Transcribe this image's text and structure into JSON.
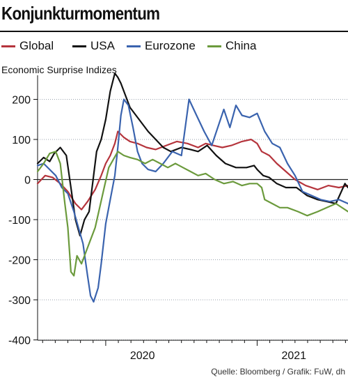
{
  "title": "Konjunkturmomentum",
  "subtitle": "Economic Surprise Indizes",
  "source": "Quelle: Bloomberg / Grafik: FuW, dh",
  "colors": {
    "global": "#b5343c",
    "usa": "#111111",
    "eurozone": "#3a63ae",
    "china": "#6b9a3c",
    "zero_line": "#222222",
    "grid": "#9aa3ad"
  },
  "legend": [
    {
      "key": "global",
      "label": "Global"
    },
    {
      "key": "usa",
      "label": "USA"
    },
    {
      "key": "eurozone",
      "label": "Eurozone"
    },
    {
      "key": "china",
      "label": "China"
    }
  ],
  "chart_data": {
    "type": "line",
    "title": "Konjunkturmomentum",
    "subtitle": "Economic Surprise Indizes",
    "ylim": [
      -400,
      300
    ],
    "yticks": [
      200,
      100,
      0,
      -100,
      -200,
      -300,
      -400
    ],
    "xlim": [
      2019.55,
      2021.6
    ],
    "xticks": [
      {
        "value": 2020.0,
        "label": "2020"
      },
      {
        "value": 2021.0,
        "label": "2021"
      }
    ],
    "grid": "horizontal",
    "legend_position": "top",
    "series": [
      {
        "name": "Global",
        "key": "global",
        "points": [
          [
            2019.55,
            -10
          ],
          [
            2019.6,
            10
          ],
          [
            2019.65,
            5
          ],
          [
            2019.7,
            -10
          ],
          [
            2019.75,
            -30
          ],
          [
            2019.8,
            -60
          ],
          [
            2019.84,
            -75
          ],
          [
            2019.88,
            -55
          ],
          [
            2019.93,
            -25
          ],
          [
            2019.97,
            10
          ],
          [
            2020.0,
            40
          ],
          [
            2020.03,
            60
          ],
          [
            2020.06,
            90
          ],
          [
            2020.08,
            120
          ],
          [
            2020.12,
            105
          ],
          [
            2020.16,
            95
          ],
          [
            2020.21,
            90
          ],
          [
            2020.27,
            80
          ],
          [
            2020.33,
            75
          ],
          [
            2020.4,
            85
          ],
          [
            2020.47,
            95
          ],
          [
            2020.54,
            90
          ],
          [
            2020.61,
            80
          ],
          [
            2020.66,
            90
          ],
          [
            2020.71,
            85
          ],
          [
            2020.77,
            80
          ],
          [
            2020.83,
            85
          ],
          [
            2020.9,
            95
          ],
          [
            2020.96,
            100
          ],
          [
            2021.0,
            90
          ],
          [
            2021.03,
            70
          ],
          [
            2021.08,
            60
          ],
          [
            2021.13,
            40
          ],
          [
            2021.19,
            20
          ],
          [
            2021.25,
            0
          ],
          [
            2021.32,
            -15
          ],
          [
            2021.4,
            -25
          ],
          [
            2021.47,
            -15
          ],
          [
            2021.54,
            -20
          ],
          [
            2021.6,
            -15
          ]
        ]
      },
      {
        "name": "USA",
        "key": "usa",
        "points": [
          [
            2019.55,
            40
          ],
          [
            2019.59,
            55
          ],
          [
            2019.63,
            45
          ],
          [
            2019.66,
            65
          ],
          [
            2019.7,
            80
          ],
          [
            2019.74,
            60
          ],
          [
            2019.77,
            -20
          ],
          [
            2019.8,
            -100
          ],
          [
            2019.83,
            -140
          ],
          [
            2019.86,
            -100
          ],
          [
            2019.89,
            -80
          ],
          [
            2019.92,
            10
          ],
          [
            2019.94,
            70
          ],
          [
            2019.97,
            100
          ],
          [
            2020.0,
            150
          ],
          [
            2020.03,
            220
          ],
          [
            2020.06,
            265
          ],
          [
            2020.08,
            255
          ],
          [
            2020.1,
            240
          ],
          [
            2020.13,
            210
          ],
          [
            2020.16,
            180
          ],
          [
            2020.2,
            160
          ],
          [
            2020.24,
            140
          ],
          [
            2020.28,
            120
          ],
          [
            2020.33,
            100
          ],
          [
            2020.38,
            80
          ],
          [
            2020.43,
            70
          ],
          [
            2020.5,
            80
          ],
          [
            2020.56,
            75
          ],
          [
            2020.61,
            70
          ],
          [
            2020.67,
            85
          ],
          [
            2020.73,
            60
          ],
          [
            2020.79,
            40
          ],
          [
            2020.86,
            30
          ],
          [
            2020.93,
            30
          ],
          [
            2020.98,
            35
          ],
          [
            2021.0,
            25
          ],
          [
            2021.04,
            10
          ],
          [
            2021.08,
            5
          ],
          [
            2021.13,
            -10
          ],
          [
            2021.19,
            -20
          ],
          [
            2021.26,
            -20
          ],
          [
            2021.33,
            -40
          ],
          [
            2021.4,
            -50
          ],
          [
            2021.46,
            -55
          ],
          [
            2021.52,
            -60
          ],
          [
            2021.58,
            -10
          ],
          [
            2021.6,
            -20
          ]
        ]
      },
      {
        "name": "Eurozone",
        "key": "eurozone",
        "points": [
          [
            2019.55,
            35
          ],
          [
            2019.59,
            40
          ],
          [
            2019.63,
            25
          ],
          [
            2019.67,
            10
          ],
          [
            2019.71,
            -20
          ],
          [
            2019.75,
            -35
          ],
          [
            2019.79,
            -80
          ],
          [
            2019.82,
            -120
          ],
          [
            2019.85,
            -160
          ],
          [
            2019.88,
            -240
          ],
          [
            2019.9,
            -290
          ],
          [
            2019.92,
            -305
          ],
          [
            2019.95,
            -270
          ],
          [
            2019.97,
            -210
          ],
          [
            2020.0,
            -110
          ],
          [
            2020.03,
            -50
          ],
          [
            2020.06,
            10
          ],
          [
            2020.08,
            80
          ],
          [
            2020.1,
            160
          ],
          [
            2020.12,
            200
          ],
          [
            2020.15,
            185
          ],
          [
            2020.18,
            130
          ],
          [
            2020.21,
            70
          ],
          [
            2020.24,
            40
          ],
          [
            2020.28,
            25
          ],
          [
            2020.33,
            20
          ],
          [
            2020.38,
            40
          ],
          [
            2020.44,
            70
          ],
          [
            2020.5,
            60
          ],
          [
            2020.55,
            200
          ],
          [
            2020.6,
            160
          ],
          [
            2020.65,
            120
          ],
          [
            2020.7,
            85
          ],
          [
            2020.74,
            130
          ],
          [
            2020.78,
            175
          ],
          [
            2020.82,
            130
          ],
          [
            2020.86,
            185
          ],
          [
            2020.9,
            160
          ],
          [
            2020.95,
            155
          ],
          [
            2021.0,
            165
          ],
          [
            2021.05,
            120
          ],
          [
            2021.1,
            90
          ],
          [
            2021.15,
            80
          ],
          [
            2021.2,
            40
          ],
          [
            2021.25,
            10
          ],
          [
            2021.3,
            -30
          ],
          [
            2021.36,
            -40
          ],
          [
            2021.42,
            -50
          ],
          [
            2021.48,
            -55
          ],
          [
            2021.54,
            -50
          ],
          [
            2021.6,
            -60
          ]
        ]
      },
      {
        "name": "China",
        "key": "china",
        "points": [
          [
            2019.55,
            20
          ],
          [
            2019.59,
            40
          ],
          [
            2019.63,
            65
          ],
          [
            2019.67,
            70
          ],
          [
            2019.7,
            40
          ],
          [
            2019.73,
            -60
          ],
          [
            2019.75,
            -120
          ],
          [
            2019.77,
            -230
          ],
          [
            2019.79,
            -240
          ],
          [
            2019.81,
            -190
          ],
          [
            2019.84,
            -210
          ],
          [
            2019.87,
            -180
          ],
          [
            2019.9,
            -150
          ],
          [
            2019.93,
            -120
          ],
          [
            2019.96,
            -70
          ],
          [
            2019.99,
            -20
          ],
          [
            2020.02,
            30
          ],
          [
            2020.05,
            50
          ],
          [
            2020.08,
            70
          ],
          [
            2020.12,
            60
          ],
          [
            2020.16,
            55
          ],
          [
            2020.21,
            50
          ],
          [
            2020.26,
            40
          ],
          [
            2020.31,
            50
          ],
          [
            2020.36,
            40
          ],
          [
            2020.41,
            30
          ],
          [
            2020.46,
            40
          ],
          [
            2020.51,
            30
          ],
          [
            2020.56,
            20
          ],
          [
            2020.61,
            10
          ],
          [
            2020.66,
            15
          ],
          [
            2020.72,
            0
          ],
          [
            2020.78,
            -10
          ],
          [
            2020.84,
            -5
          ],
          [
            2020.9,
            -15
          ],
          [
            2020.95,
            -10
          ],
          [
            2021.0,
            -10
          ],
          [
            2021.03,
            -20
          ],
          [
            2021.05,
            -50
          ],
          [
            2021.1,
            -60
          ],
          [
            2021.15,
            -70
          ],
          [
            2021.2,
            -70
          ],
          [
            2021.27,
            -80
          ],
          [
            2021.33,
            -90
          ],
          [
            2021.4,
            -80
          ],
          [
            2021.46,
            -70
          ],
          [
            2021.52,
            -60
          ],
          [
            2021.6,
            -80
          ]
        ]
      }
    ]
  }
}
